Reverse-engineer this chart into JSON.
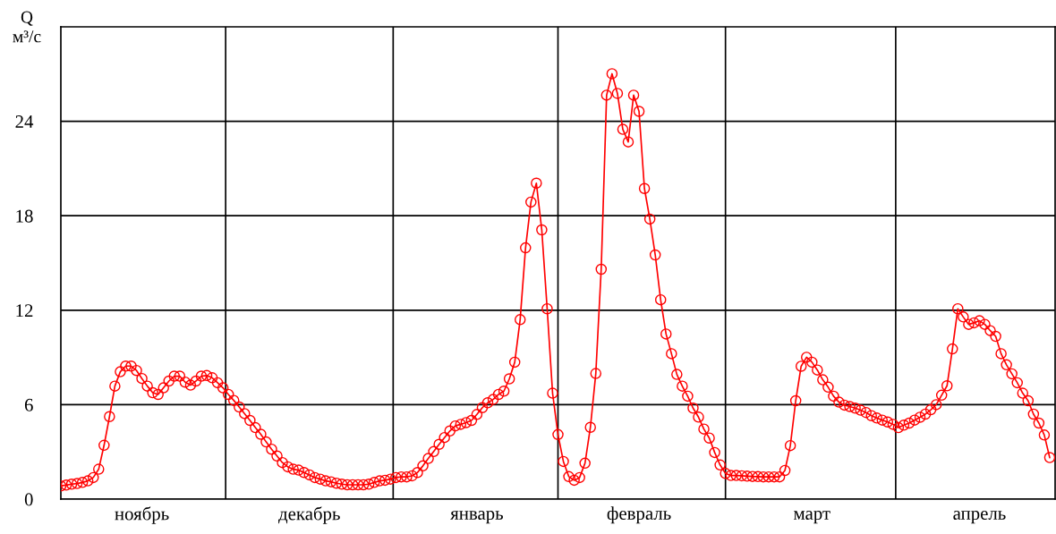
{
  "chart_data": {
    "type": "line",
    "ylabel": "Q\nм³/с",
    "ylim": [
      0,
      30
    ],
    "yticks": [
      0,
      6,
      12,
      18,
      24
    ],
    "categories": [
      null,
      null,
      null,
      null,
      null,
      null,
      null,
      null,
      null,
      null,
      null,
      null,
      null,
      null,
      null,
      "ноябрь",
      null,
      null,
      null,
      null,
      null,
      null,
      null,
      null,
      null,
      null,
      null,
      null,
      null,
      null,
      null,
      null,
      null,
      null,
      null,
      null,
      null,
      null,
      null,
      null,
      null,
      null,
      null,
      null,
      null,
      null,
      "декабрь",
      null,
      null,
      null,
      null,
      null,
      null,
      null,
      null,
      null,
      null,
      null,
      null,
      null,
      null,
      null,
      null,
      null,
      null,
      null,
      null,
      null,
      null,
      null,
      null,
      null,
      null,
      null,
      null,
      null,
      null,
      "январь",
      null,
      null,
      null,
      null,
      null,
      null,
      null,
      null,
      null,
      null,
      null,
      null,
      null,
      null,
      null,
      null,
      null,
      null,
      null,
      null,
      null,
      null,
      null,
      null,
      null,
      null,
      null,
      null,
      null,
      "февраль",
      null,
      null,
      null,
      null,
      null,
      null,
      null,
      null,
      null,
      null,
      null,
      null,
      null,
      null,
      null,
      null,
      null,
      null,
      null,
      null,
      null,
      null,
      null,
      null,
      null,
      null,
      null,
      null,
      null,
      null,
      null,
      "март",
      null,
      null,
      null,
      null,
      null,
      null,
      null,
      null,
      null,
      null,
      null,
      null,
      null,
      null,
      null,
      null,
      null,
      null,
      null,
      null,
      null,
      null,
      null,
      null,
      null,
      null,
      null,
      null,
      null,
      null,
      "апрель",
      null,
      null,
      null,
      null,
      null,
      null,
      null,
      null,
      null,
      null,
      null,
      null,
      null
    ],
    "grid": "y",
    "marker": "circle",
    "line_style": "solid",
    "series": [
      {
        "color": "#ff0000",
        "values": [
          0.84,
          0.89,
          0.95,
          0.99,
          1.06,
          1.16,
          1.37,
          1.9,
          3.42,
          5.24,
          7.18,
          8.09,
          8.45,
          8.45,
          8.17,
          7.66,
          7.18,
          6.76,
          6.65,
          7.07,
          7.5,
          7.81,
          7.81,
          7.43,
          7.24,
          7.5,
          7.81,
          7.85,
          7.71,
          7.39,
          7.07,
          6.65,
          6.27,
          5.85,
          5.43,
          5.0,
          4.54,
          4.12,
          3.63,
          3.17,
          2.74,
          2.32,
          2.05,
          1.9,
          1.84,
          1.69,
          1.54,
          1.37,
          1.27,
          1.16,
          1.1,
          1.01,
          0.95,
          0.91,
          0.91,
          0.91,
          0.91,
          0.95,
          1.06,
          1.16,
          1.2,
          1.27,
          1.37,
          1.41,
          1.41,
          1.48,
          1.69,
          2.11,
          2.58,
          3.02,
          3.48,
          3.91,
          4.33,
          4.65,
          4.75,
          4.86,
          5.0,
          5.38,
          5.81,
          6.12,
          6.33,
          6.65,
          6.86,
          7.64,
          8.7,
          11.4,
          15.96,
          18.87,
          20.07,
          17.1,
          12.09,
          6.73,
          4.1,
          2.39,
          1.43,
          1.2,
          1.37,
          2.28,
          4.56,
          7.98,
          14.6,
          25.66,
          27.02,
          25.77,
          23.49,
          22.69,
          25.66,
          24.63,
          19.73,
          17.79,
          15.51,
          12.66,
          10.49,
          9.24,
          7.92,
          7.18,
          6.54,
          5.78,
          5.21,
          4.45,
          3.88,
          2.96,
          2.17,
          1.63,
          1.5,
          1.5,
          1.48,
          1.46,
          1.44,
          1.43,
          1.41,
          1.41,
          1.41,
          1.41,
          1.82,
          3.4,
          6.25,
          8.44,
          9.01,
          8.7,
          8.2,
          7.58,
          7.11,
          6.54,
          6.16,
          5.97,
          5.88,
          5.78,
          5.65,
          5.5,
          5.3,
          5.15,
          5.02,
          4.9,
          4.75,
          4.54,
          4.7,
          4.83,
          5.02,
          5.2,
          5.4,
          5.68,
          6.0,
          6.6,
          7.2,
          9.54,
          12.09,
          11.57,
          11.1,
          11.2,
          11.33,
          11.1,
          10.7,
          10.34,
          9.24,
          8.53,
          7.96,
          7.39,
          6.73,
          6.25,
          5.4,
          4.83,
          4.07,
          2.64
        ]
      }
    ]
  }
}
